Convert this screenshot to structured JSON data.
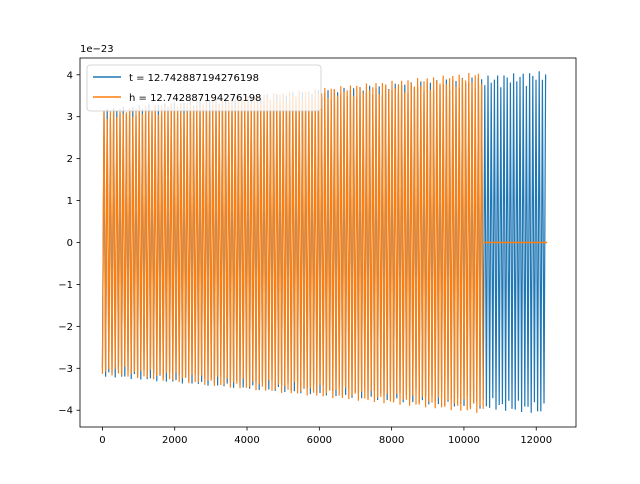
{
  "chart_data": {
    "type": "line",
    "offset_text": "1e−23",
    "xlim": [
      -620,
      13100
    ],
    "ylim": [
      -4.4,
      4.4
    ],
    "x_ticks": [
      0,
      2000,
      4000,
      6000,
      8000,
      10000,
      12000
    ],
    "x_tick_labels": [
      "0",
      "2000",
      "4000",
      "6000",
      "8000",
      "10000",
      "12000"
    ],
    "y_ticks": [
      -4,
      -3,
      -2,
      -1,
      0,
      1,
      2,
      3,
      4
    ],
    "y_tick_labels": [
      "−4",
      "−3",
      "−2",
      "−1",
      "0",
      "1",
      "2",
      "3",
      "4"
    ],
    "grid": false,
    "legend_position": "upper-left",
    "series": [
      {
        "name": "t = 12.742887194276198",
        "color": "#1f77b4",
        "x_range": [
          0,
          12300
        ],
        "envelope_start": 3.2,
        "envelope_end": 4.1,
        "trailing_flat_from": null
      },
      {
        "name": "h = 12.742887194276198",
        "color": "#ff7f0e",
        "x_range": [
          0,
          10550
        ],
        "envelope_start": 3.15,
        "envelope_end": 4.08,
        "trailing_flat_from": 10550,
        "trailing_flat_to": 12300
      }
    ]
  }
}
